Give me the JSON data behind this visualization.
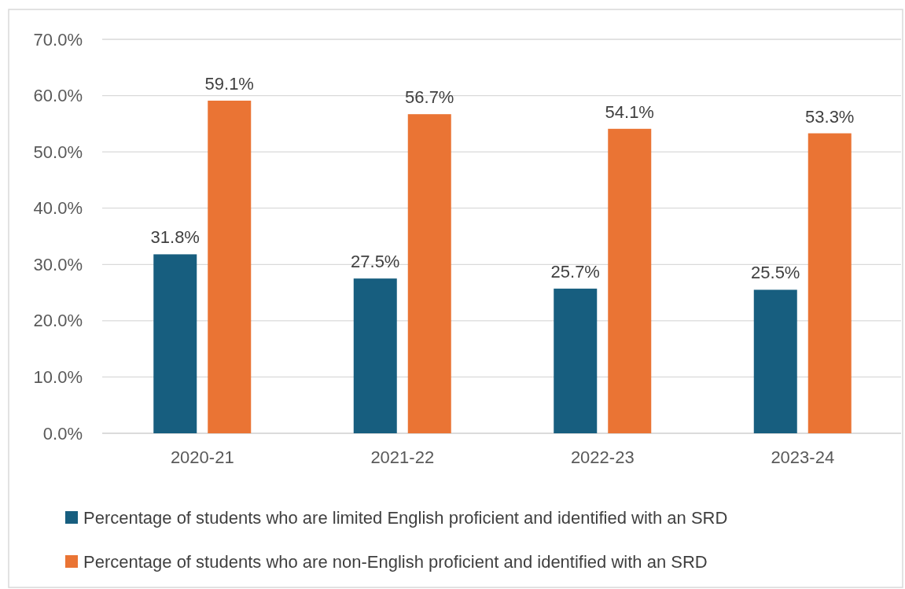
{
  "chart_data": {
    "type": "bar",
    "categories": [
      "2020-21",
      "2021-22",
      "2022-23",
      "2023-24"
    ],
    "series": [
      {
        "name": "Percentage of students who are limited English proficient and identified with an SRD",
        "color": "#175e7f",
        "values": [
          31.8,
          27.5,
          25.7,
          25.5
        ],
        "value_labels": [
          "31.8%",
          "27.5%",
          "25.7%",
          "25.5%"
        ]
      },
      {
        "name": "Percentage of students who are non-English proficient and identified with an SRD",
        "color": "#ea7434",
        "values": [
          59.1,
          56.7,
          54.1,
          53.3
        ],
        "value_labels": [
          "59.1%",
          "56.7%",
          "54.1%",
          "53.3%"
        ]
      }
    ],
    "ylim": [
      0,
      70
    ],
    "yticks": [
      {
        "value": 0,
        "label": "0.0%"
      },
      {
        "value": 10,
        "label": "10.0%"
      },
      {
        "value": 20,
        "label": "20.0%"
      },
      {
        "value": 30,
        "label": "30.0%"
      },
      {
        "value": 40,
        "label": "40.0%"
      },
      {
        "value": 50,
        "label": "50.0%"
      },
      {
        "value": 60,
        "label": "60.0%"
      },
      {
        "value": 70,
        "label": "70.0%"
      }
    ],
    "grid": "y",
    "legend": "bottom"
  }
}
